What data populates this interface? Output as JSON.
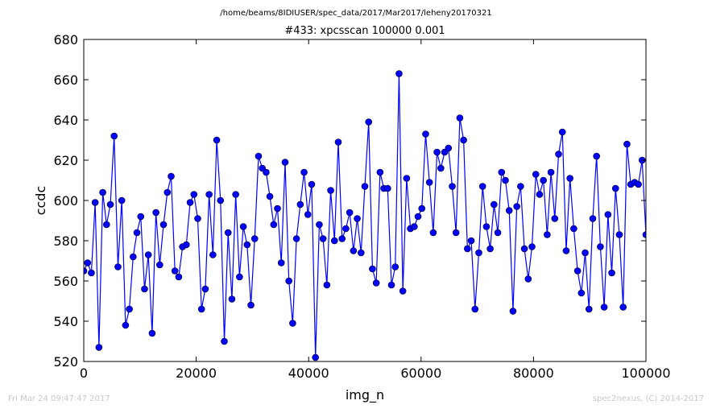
{
  "suptitle": "/home/beams/8IDIUSER/spec_data/2017/Mar2017/leheny20170321",
  "footer": {
    "timestamp": "Fri Mar 24 09:47:47 2017",
    "credit": "spec2nexus, (C) 2014-2017"
  },
  "colors": {
    "line": "#0000ff",
    "marker_fill": "#0000ff",
    "marker_edge": "#000000",
    "footer_text": "#c8c8c8"
  },
  "chart_data": {
    "type": "line",
    "title": "#433: xpcsscan 100000 0.001",
    "xlabel": "img_n",
    "ylabel": "ccdc",
    "xlim": [
      0,
      100000
    ],
    "ylim": [
      520,
      680
    ],
    "xticks": [
      0,
      20000,
      40000,
      60000,
      80000,
      100000
    ],
    "yticks": [
      520,
      540,
      560,
      580,
      600,
      620,
      640,
      660,
      680
    ],
    "grid": false,
    "marker": "circle",
    "series": [
      {
        "x": [
          0,
          676,
          1351,
          2027,
          2703,
          3378,
          4054,
          4730,
          5405,
          6081,
          6757,
          7432,
          8108,
          8784,
          9459,
          10135,
          10811,
          11486,
          12162,
          12838,
          13514,
          14189,
          14865,
          15541,
          16216,
          16892,
          17568,
          18243,
          18919,
          19595,
          20270,
          20946,
          21622,
          22297,
          22973,
          23649,
          24324,
          25000,
          25676,
          26351,
          27027,
          27703,
          28378,
          29054,
          29730,
          30405,
          31081,
          31757,
          32432,
          33108,
          33784,
          34459,
          35135,
          35811,
          36486,
          37162,
          37838,
          38514,
          39189,
          39865,
          40541,
          41216,
          41892,
          42568,
          43243,
          43919,
          44595,
          45270,
          45946,
          46622,
          47297,
          47973,
          48649,
          49324,
          50000,
          50676,
          51351,
          52027,
          52703,
          53378,
          54054,
          54730,
          55405,
          56081,
          56757,
          57432,
          58108,
          58784,
          59459,
          60135,
          60811,
          61486,
          62162,
          62838,
          63514,
          64189,
          64865,
          65541,
          66216,
          66892,
          67568,
          68243,
          68919,
          69595,
          70270,
          70946,
          71622,
          72297,
          72973,
          73649,
          74324,
          75000,
          75676,
          76351,
          77027,
          77703,
          78378,
          79054,
          79730,
          80405,
          81081,
          81757,
          82432,
          83108,
          83784,
          84459,
          85135,
          85811,
          86486,
          87162,
          87838,
          88514,
          89189,
          89865,
          90541,
          91216,
          91892,
          92568,
          93243,
          93919,
          94595,
          95270,
          95946,
          96622,
          97297,
          97973,
          98649,
          99324,
          100000
        ],
        "values": [
          565,
          569,
          564,
          599,
          527,
          604,
          588,
          598,
          632,
          567,
          600,
          538,
          546,
          572,
          584,
          592,
          556,
          573,
          534,
          594,
          568,
          588,
          604,
          612,
          565,
          562,
          577,
          578,
          599,
          603,
          591,
          546,
          556,
          603,
          573,
          630,
          600,
          530,
          584,
          551,
          603,
          562,
          587,
          578,
          548,
          581,
          622,
          616,
          614,
          602,
          588,
          596,
          569,
          619,
          560,
          539,
          581,
          598,
          614,
          593,
          608,
          522,
          588,
          581,
          558,
          605,
          580,
          629,
          581,
          586,
          594,
          575,
          591,
          574,
          607,
          639,
          566,
          559,
          614,
          606,
          606,
          558,
          567,
          663,
          555,
          611,
          586,
          587,
          592,
          596,
          633,
          609,
          584,
          624,
          616,
          624,
          626,
          607,
          584,
          641,
          630,
          576,
          580,
          546,
          574,
          607,
          587,
          576,
          598,
          584,
          614,
          610,
          595,
          545,
          597,
          607,
          576,
          561,
          577,
          613,
          603,
          610,
          583,
          614,
          591,
          623,
          634,
          575,
          611,
          586,
          565,
          554,
          574,
          546,
          591,
          622,
          577,
          547,
          593,
          564,
          606,
          583,
          547,
          628,
          608,
          609,
          608,
          620,
          583
        ]
      }
    ]
  }
}
